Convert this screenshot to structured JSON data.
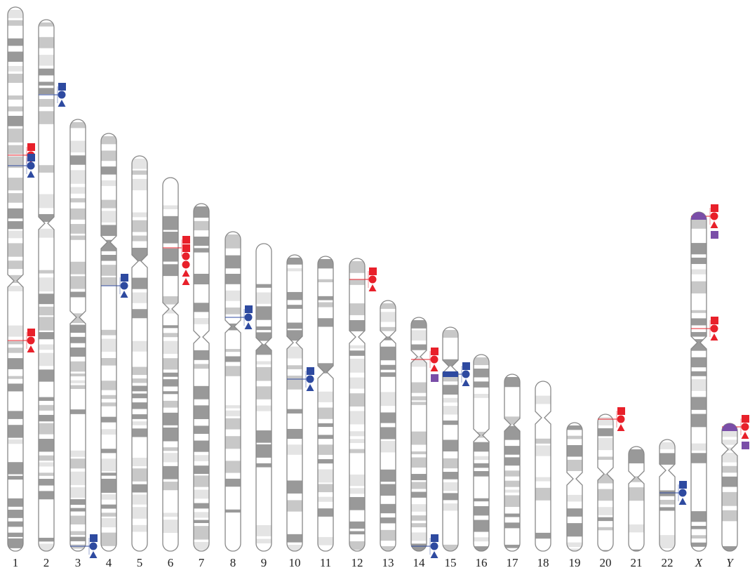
{
  "chromosomes": {
    "labels": [
      "1",
      "2",
      "3",
      "4",
      "5",
      "6",
      "7",
      "8",
      "9",
      "10",
      "11",
      "12",
      "13",
      "14",
      "15",
      "16",
      "17",
      "18",
      "19",
      "20",
      "21",
      "22",
      "X",
      "Y"
    ]
  }
}
